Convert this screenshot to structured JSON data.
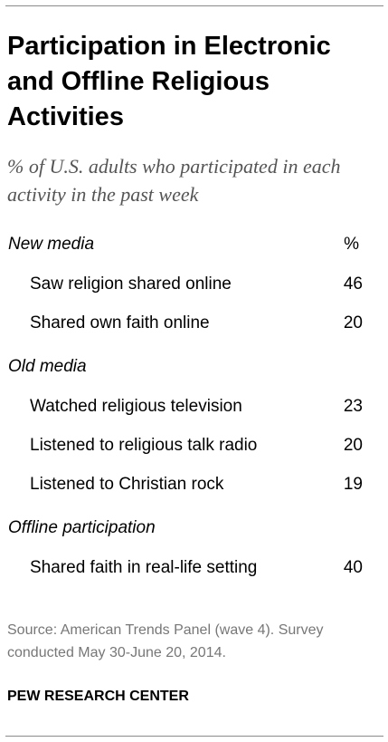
{
  "chart_data": {
    "type": "table",
    "title": "Participation in Electronic and Offline Religious Activities",
    "subtitle": "% of U.S. adults who participated in each activity in the past week",
    "unit": "%",
    "sections": [
      {
        "name": "New media",
        "rows": [
          {
            "label": "Saw religion shared online",
            "value": 46
          },
          {
            "label": "Shared own faith online",
            "value": 20
          }
        ]
      },
      {
        "name": "Old media",
        "rows": [
          {
            "label": "Watched religious television",
            "value": 23
          },
          {
            "label": "Listened to religious talk radio",
            "value": 20
          },
          {
            "label": "Listened to Christian rock",
            "value": 19
          }
        ]
      },
      {
        "name": "Offline participation",
        "rows": [
          {
            "label": "Shared faith in real-life setting",
            "value": 40
          }
        ]
      }
    ],
    "source": "Source: American Trends Panel (wave 4). Survey conducted May 30-June 20, 2014.",
    "branding": "PEW RESEARCH CENTER"
  }
}
